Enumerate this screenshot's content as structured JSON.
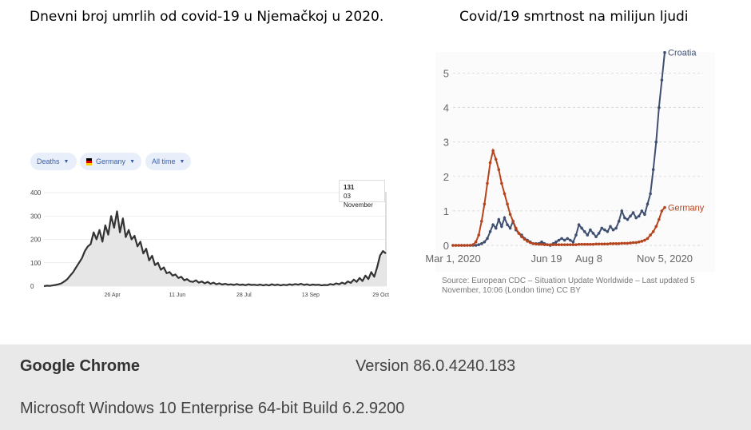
{
  "titles": {
    "left": "Dnevni broj umrlih od covid-19 u Njemačkoj u 2020.",
    "right": "Covid/19 smrtnost na milijun ljudi"
  },
  "filters": {
    "metric": "Deaths",
    "country": "Germany",
    "range": "All time"
  },
  "tooltip": {
    "value": "131",
    "date": "03 November"
  },
  "source": "Source: European CDC – Situation Update Worldwide – Last updated 5 November, 10:06 (London time) CC BY",
  "footer": {
    "app": "Google Chrome",
    "version": "Version 86.0.4240.183",
    "os": "Microsoft Windows 10 Enterprise 64-bit Build 6.2.9200"
  },
  "colors": {
    "left_line": "#333333",
    "croatia": "#3e4f72",
    "germany": "#b5441e",
    "grid": "#dddddd"
  },
  "chart_data": [
    {
      "type": "area",
      "title": "Dnevni broj umrlih od covid-19 u Njemačkoj u 2020.",
      "xlabel": "",
      "ylabel": "",
      "ylim": [
        0,
        400
      ],
      "yticks": [
        "0",
        "100",
        "200",
        "300",
        "400"
      ],
      "xticks": [
        "26 Apr",
        "11 Jun",
        "28 Jul",
        "13 Sep",
        "29 Oct"
      ],
      "series": [
        {
          "name": "Deaths",
          "values": [
            0,
            2,
            1,
            3,
            5,
            8,
            12,
            20,
            30,
            45,
            60,
            80,
            100,
            120,
            150,
            170,
            180,
            230,
            200,
            240,
            190,
            260,
            220,
            300,
            250,
            320,
            230,
            290,
            210,
            240,
            200,
            215,
            170,
            190,
            140,
            160,
            110,
            130,
            90,
            100,
            70,
            80,
            55,
            60,
            45,
            50,
            35,
            40,
            25,
            30,
            20,
            18,
            25,
            15,
            20,
            12,
            18,
            10,
            15,
            8,
            12,
            7,
            10,
            6,
            8,
            5,
            9,
            5,
            7,
            4,
            8,
            5,
            6,
            4,
            7,
            3,
            6,
            3,
            8,
            4,
            7,
            3,
            6,
            4,
            8,
            5,
            9,
            6,
            10,
            5,
            8,
            4,
            7,
            5,
            6,
            3,
            5,
            4,
            9,
            6,
            12,
            8,
            15,
            10,
            20,
            14,
            28,
            18,
            35,
            22,
            45,
            30,
            60,
            40,
            80,
            131,
            150,
            140
          ]
        }
      ]
    },
    {
      "type": "line",
      "title": "Covid/19 smrtnost na milijun ljudi",
      "xlabel": "",
      "ylabel": "",
      "ylim": [
        0,
        5.5
      ],
      "yticks": [
        "0",
        "1",
        "2",
        "3",
        "4",
        "5"
      ],
      "xticks": [
        "Mar 1, 2020",
        "Jun 19",
        "Aug 8",
        "Nov 5, 2020"
      ],
      "source": "European CDC – Situation Update Worldwide",
      "series": [
        {
          "name": "Croatia",
          "values": [
            0,
            0,
            0,
            0,
            0,
            0,
            0,
            0,
            0,
            0.02,
            0.05,
            0.1,
            0.2,
            0.4,
            0.6,
            0.5,
            0.75,
            0.55,
            0.8,
            0.6,
            0.5,
            0.7,
            0.45,
            0.35,
            0.3,
            0.2,
            0.15,
            0.1,
            0.05,
            0.05,
            0.05,
            0.1,
            0.05,
            0.02,
            0,
            0.05,
            0.1,
            0.15,
            0.2,
            0.15,
            0.2,
            0.15,
            0.1,
            0.3,
            0.6,
            0.5,
            0.4,
            0.3,
            0.45,
            0.35,
            0.25,
            0.35,
            0.5,
            0.45,
            0.4,
            0.55,
            0.45,
            0.5,
            0.7,
            1.0,
            0.8,
            0.75,
            0.85,
            0.95,
            0.8,
            0.85,
            1.0,
            0.9,
            1.2,
            1.5,
            2.2,
            3.0,
            4.0,
            4.8,
            5.6
          ]
        },
        {
          "name": "Germany",
          "values": [
            0,
            0,
            0,
            0,
            0,
            0,
            0,
            0.02,
            0.1,
            0.3,
            0.7,
            1.2,
            1.8,
            2.4,
            2.75,
            2.5,
            2.2,
            1.8,
            1.5,
            1.2,
            0.9,
            0.7,
            0.5,
            0.35,
            0.25,
            0.18,
            0.12,
            0.08,
            0.05,
            0.04,
            0.03,
            0.03,
            0.02,
            0.02,
            0.02,
            0.02,
            0.02,
            0.02,
            0.02,
            0.02,
            0.02,
            0.02,
            0.02,
            0.02,
            0.03,
            0.03,
            0.03,
            0.03,
            0.03,
            0.03,
            0.04,
            0.04,
            0.04,
            0.04,
            0.04,
            0.05,
            0.05,
            0.05,
            0.05,
            0.06,
            0.06,
            0.06,
            0.07,
            0.08,
            0.08,
            0.1,
            0.12,
            0.15,
            0.2,
            0.3,
            0.4,
            0.55,
            0.75,
            1.0,
            1.1
          ]
        }
      ]
    }
  ]
}
